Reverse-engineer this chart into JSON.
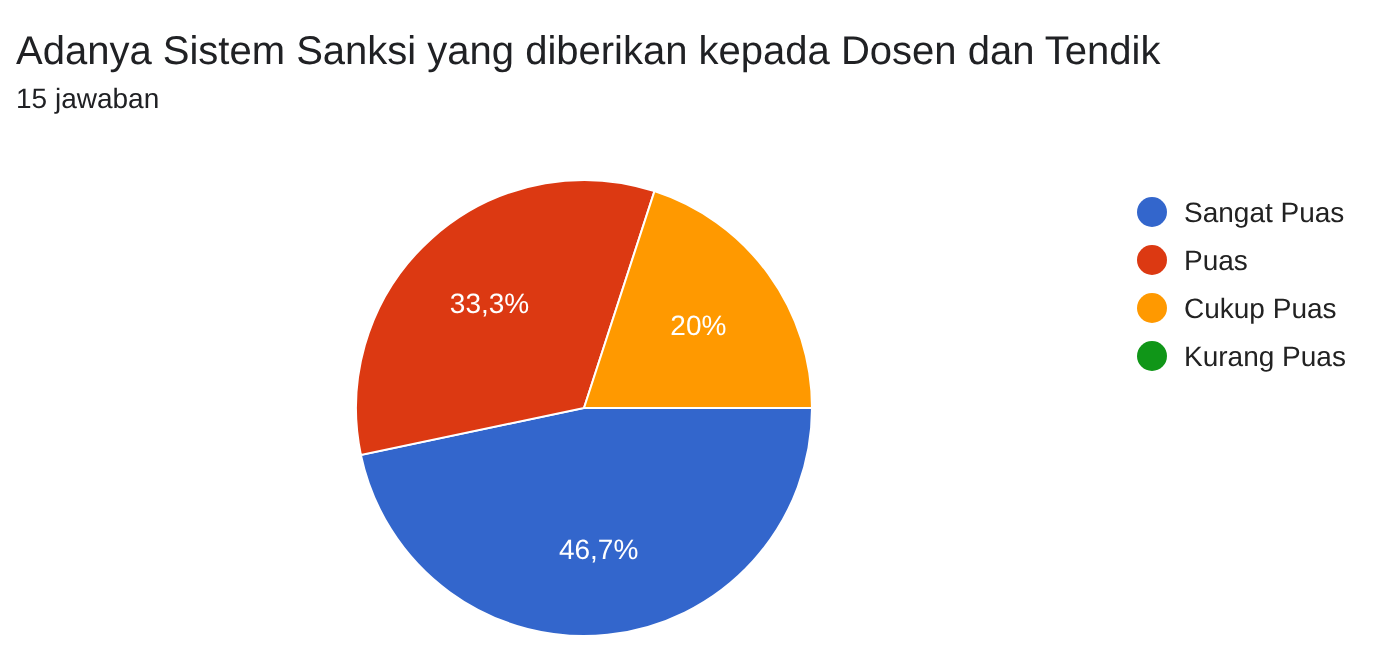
{
  "chart_data": {
    "type": "pie",
    "title": "Adanya Sistem Sanksi yang diberikan kepada Dosen dan Tendik",
    "subtitle": "15 jawaban",
    "categories": [
      "Sangat Puas",
      "Puas",
      "Cukup Puas",
      "Kurang Puas"
    ],
    "values": [
      46.7,
      33.3,
      20,
      0
    ],
    "colors": [
      "#3366cc",
      "#dc3912",
      "#ff9900",
      "#109618"
    ],
    "value_labels": [
      "46,7%",
      "33,3%",
      "20%",
      null
    ],
    "legend": "right"
  }
}
